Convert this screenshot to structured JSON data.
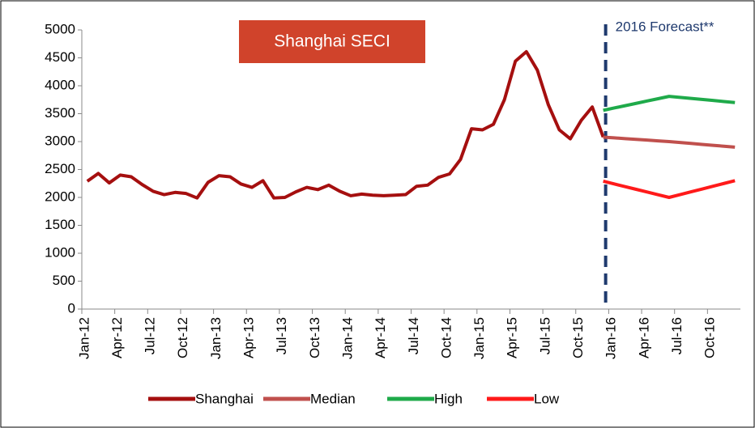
{
  "chart_data": {
    "type": "line",
    "title": "Shanghai SECI",
    "annotation": "2016 Forecast**",
    "categories": [
      "Jan-12",
      null,
      null,
      "Apr-12",
      null,
      null,
      "Jul-12",
      null,
      null,
      "Oct-12",
      null,
      null,
      "Jan-13",
      null,
      null,
      "Apr-13",
      null,
      null,
      "Jul-13",
      null,
      null,
      "Oct-13",
      null,
      null,
      "Jan-14",
      null,
      null,
      "Apr-14",
      null,
      null,
      "Jul-14",
      null,
      null,
      "Oct-14",
      null,
      null,
      "Jan-15",
      null,
      null,
      "Apr-15",
      null,
      null,
      "Jul-15",
      null,
      null,
      "Oct-15",
      null,
      null,
      "Jan-16",
      null,
      null,
      "Apr-16",
      null,
      null,
      "Jul-16",
      null,
      null,
      "Oct-16",
      null,
      null
    ],
    "series": [
      {
        "name": "Shanghai",
        "color": "#a50f0f",
        "values": [
          2290,
          2430,
          2260,
          2400,
          2370,
          2230,
          2110,
          2050,
          2090,
          2070,
          1990,
          2270,
          2390,
          2370,
          2240,
          2180,
          2300,
          1990,
          2000,
          2100,
          2180,
          2140,
          2220,
          2110,
          2030,
          2060,
          2040,
          2030,
          2040,
          2050,
          2200,
          2220,
          2360,
          2420,
          2680,
          3230,
          3210,
          3310,
          3750,
          4440,
          4610,
          4280,
          3660,
          3210,
          3050,
          3380,
          3620,
          3080,
          null,
          null,
          null,
          null,
          null,
          null,
          null,
          null,
          null,
          null,
          null,
          null
        ]
      },
      {
        "name": "Median",
        "color": "#c0504d",
        "values": [
          null,
          null,
          null,
          null,
          null,
          null,
          null,
          null,
          null,
          null,
          null,
          null,
          null,
          null,
          null,
          null,
          null,
          null,
          null,
          null,
          null,
          null,
          null,
          null,
          null,
          null,
          null,
          null,
          null,
          null,
          null,
          null,
          null,
          null,
          null,
          null,
          null,
          null,
          null,
          null,
          null,
          null,
          null,
          null,
          null,
          null,
          null,
          3080,
          3067,
          3053,
          3040,
          3027,
          3013,
          3000,
          2983,
          2967,
          2950,
          2933,
          2917,
          2900
        ]
      },
      {
        "name": "High",
        "color": "#1faa4a",
        "values": [
          null,
          null,
          null,
          null,
          null,
          null,
          null,
          null,
          null,
          null,
          null,
          null,
          null,
          null,
          null,
          null,
          null,
          null,
          null,
          null,
          null,
          null,
          null,
          null,
          null,
          null,
          null,
          null,
          null,
          null,
          null,
          null,
          null,
          null,
          null,
          null,
          null,
          null,
          null,
          null,
          null,
          null,
          null,
          null,
          null,
          null,
          null,
          3560,
          3602,
          3643,
          3685,
          3727,
          3768,
          3810,
          3792,
          3773,
          3755,
          3737,
          3718,
          3700
        ]
      },
      {
        "name": "Low",
        "color": "#ff1a1a",
        "values": [
          null,
          null,
          null,
          null,
          null,
          null,
          null,
          null,
          null,
          null,
          null,
          null,
          null,
          null,
          null,
          null,
          null,
          null,
          null,
          null,
          null,
          null,
          null,
          null,
          null,
          null,
          null,
          null,
          null,
          null,
          null,
          null,
          null,
          null,
          null,
          null,
          null,
          null,
          null,
          null,
          null,
          null,
          null,
          null,
          null,
          null,
          null,
          2290,
          2242,
          2193,
          2145,
          2097,
          2048,
          2000,
          2050,
          2100,
          2150,
          2200,
          2250,
          2300
        ]
      }
    ],
    "ylim": [
      0,
      5000
    ],
    "yticks": [
      0,
      500,
      1000,
      1500,
      2000,
      2500,
      3000,
      3500,
      4000,
      4500,
      5000
    ],
    "forecast_start_index": 47,
    "legend": "bottom"
  }
}
